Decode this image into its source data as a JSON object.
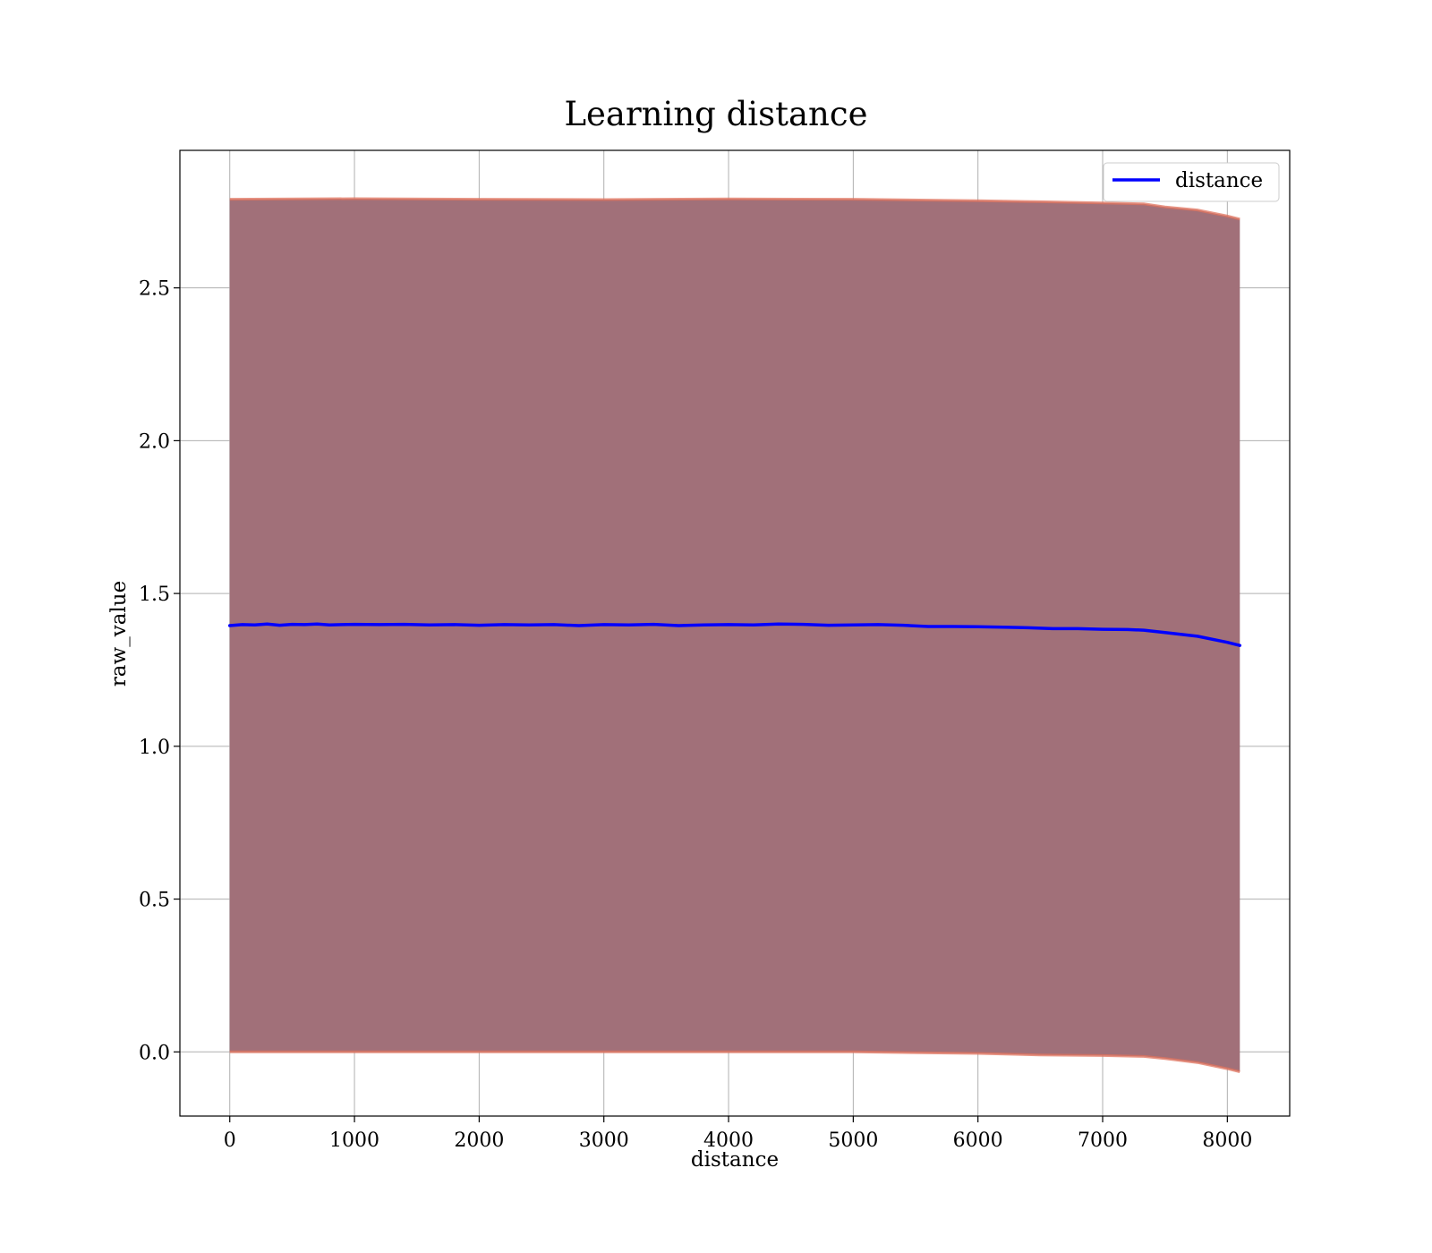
{
  "chart_data": {
    "type": "line",
    "title": "Learning distance",
    "xlabel": "distance",
    "ylabel": "raw_value",
    "xlim": [
      -400,
      8500
    ],
    "ylim": [
      -0.21,
      2.95
    ],
    "xticks": [
      0,
      1000,
      2000,
      3000,
      4000,
      5000,
      6000,
      7000,
      8000
    ],
    "xtick_labels": [
      "0",
      "1000",
      "2000",
      "3000",
      "4000",
      "5000",
      "6000",
      "7000",
      "8000"
    ],
    "yticks": [
      0.0,
      0.5,
      1.0,
      1.5,
      2.0,
      2.5
    ],
    "ytick_labels": [
      "0.0",
      "0.5",
      "1.0",
      "1.5",
      "2.0",
      "2.5"
    ],
    "grid": true,
    "legend": {
      "position": "upper right",
      "entries": [
        "distance"
      ]
    },
    "colors": {
      "line": "#0000ff",
      "band_fill": "#a17079",
      "band_edge": "#e0735e",
      "inner_edge": "#7a4a55"
    },
    "series": [
      {
        "name": "distance",
        "x": [
          0,
          100,
          200,
          300,
          400,
          500,
          600,
          700,
          800,
          900,
          1000,
          1200,
          1400,
          1600,
          1800,
          2000,
          2200,
          2400,
          2600,
          2800,
          3000,
          3200,
          3400,
          3600,
          3800,
          4000,
          4200,
          4400,
          4600,
          4800,
          5000,
          5200,
          5400,
          5600,
          5800,
          6000,
          6200,
          6400,
          6600,
          6800,
          7000,
          7200,
          7330,
          7500,
          7760,
          8000,
          8100
        ],
        "y": [
          1.395,
          1.398,
          1.397,
          1.4,
          1.396,
          1.399,
          1.398,
          1.4,
          1.397,
          1.398,
          1.399,
          1.398,
          1.399,
          1.397,
          1.398,
          1.396,
          1.398,
          1.397,
          1.398,
          1.395,
          1.398,
          1.397,
          1.399,
          1.395,
          1.397,
          1.398,
          1.397,
          1.4,
          1.399,
          1.396,
          1.397,
          1.398,
          1.396,
          1.392,
          1.392,
          1.391,
          1.39,
          1.388,
          1.385,
          1.385,
          1.383,
          1.382,
          1.38,
          1.372,
          1.36,
          1.34,
          1.33
        ]
      }
    ],
    "band": {
      "x": [
        0,
        1000,
        2000,
        3000,
        4000,
        5000,
        6000,
        6500,
        7000,
        7330,
        7500,
        7760,
        8000,
        8100
      ],
      "upper": [
        2.79,
        2.792,
        2.79,
        2.789,
        2.791,
        2.79,
        2.785,
        2.782,
        2.778,
        2.775,
        2.765,
        2.755,
        2.735,
        2.725
      ],
      "lower": [
        0.0,
        0.0,
        0.0,
        0.0,
        0.0,
        0.0,
        -0.005,
        -0.01,
        -0.012,
        -0.015,
        -0.022,
        -0.035,
        -0.055,
        -0.065
      ]
    }
  }
}
